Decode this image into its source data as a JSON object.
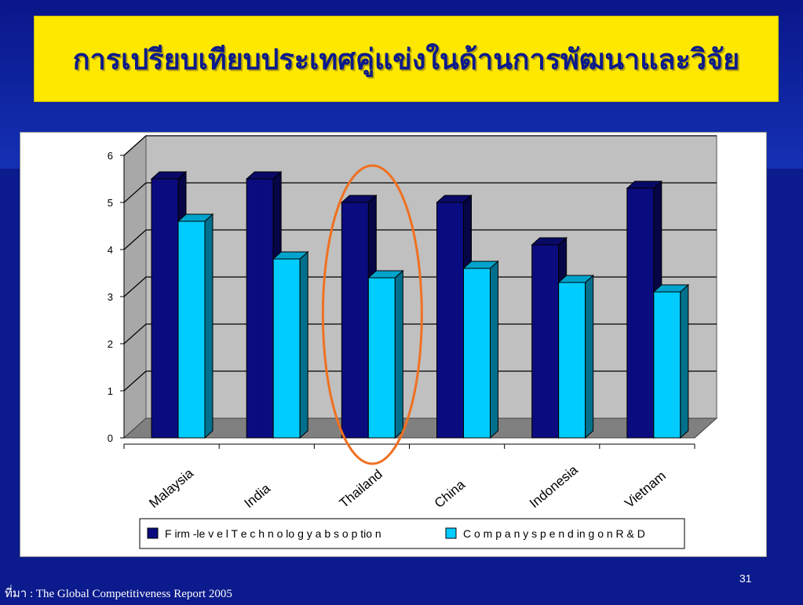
{
  "slide": {
    "title": "การเปรียบเทียบประเทศคู่แข่งในด้านการพัฒนาและวิจัย",
    "page_number": "31",
    "source": "ที่มา : The Global Competitiveness Report  2005"
  },
  "colors": {
    "series1": "#0b0b80",
    "series2": "#00ccff",
    "plot_back_wall": "#c0c0c0",
    "floor": "#808080",
    "highlight": "#f07020"
  },
  "chart_data": {
    "type": "bar",
    "style": "3d-clustered-column",
    "categories": [
      "Malaysia",
      "India",
      "Thailand",
      "China",
      "Indonesia",
      "Vietnam"
    ],
    "series": [
      {
        "name": "F irm -le v e l T e c h n o lo g y  a b s o p tio n",
        "values": [
          5.5,
          5.5,
          5.0,
          5.0,
          4.1,
          5.3
        ]
      },
      {
        "name": "C o m p a n y  s p e n d in g  o n  R & D",
        "values": [
          4.6,
          3.8,
          3.4,
          3.6,
          3.3,
          3.1
        ]
      }
    ],
    "ylim": [
      0,
      6
    ],
    "yticks": [
      "0",
      "1",
      "2",
      "3",
      "4",
      "5",
      "6"
    ],
    "grid": true,
    "legend_position": "bottom",
    "highlighted_category": "Thailand"
  }
}
